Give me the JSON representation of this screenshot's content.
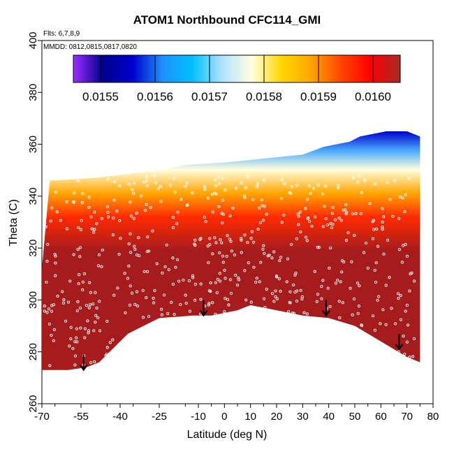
{
  "chart_data": {
    "type": "heatmap",
    "title": "ATOM1 Northbound CFC114_GMI",
    "subtitle_flights": "Flts: 6,7,8,9",
    "subtitle_dates": "MMDD: 0812,0815,0817,0820",
    "xlabel": "Latitude (deg N)",
    "ylabel": "Theta (C)",
    "xlim": [
      -70,
      80
    ],
    "ylim": [
      260,
      400
    ],
    "x_tick_labels": [
      "-70",
      "-55",
      "-40",
      "-25",
      "-10",
      "0",
      "10",
      "20",
      "30",
      "40",
      "50",
      "60",
      "70",
      "80"
    ],
    "x_tick_values": [
      -70,
      -55,
      -40,
      -25,
      -10,
      0,
      10,
      20,
      30,
      40,
      50,
      60,
      70,
      80
    ],
    "y_ticks": [
      260,
      280,
      300,
      320,
      340,
      360,
      380,
      400
    ],
    "colorbar": {
      "range": [
        0.01545,
        0.01605
      ],
      "tick_values": [
        0.0155,
        0.0156,
        0.0157,
        0.0158,
        0.0159,
        0.016
      ],
      "tick_labels": [
        "0.0155",
        "0.0156",
        "0.0157",
        "0.0158",
        "0.0159",
        "0.0160"
      ],
      "colors": [
        "#9b30ff",
        "#00008b",
        "#0000cd",
        "#1e90ff",
        "#00bfff",
        "#b0e2ff",
        "#ffffe0",
        "#ffd700",
        "#ffa500",
        "#ff4500",
        "#ff0000",
        "#a52a2a"
      ]
    },
    "field_description_colors": {
      "low": "#0000cd",
      "mid": "#ffffe0",
      "high": "#a61c1c"
    },
    "profile_upper_boundary": [
      [
        -70,
        312
      ],
      [
        -67,
        346
      ],
      [
        -50,
        347
      ],
      [
        -42,
        348
      ],
      [
        -25,
        350
      ],
      [
        -15,
        352
      ],
      [
        0,
        353
      ],
      [
        10,
        354
      ],
      [
        20,
        355
      ],
      [
        30,
        356
      ],
      [
        38,
        359
      ],
      [
        48,
        361
      ],
      [
        52,
        363
      ],
      [
        62,
        365
      ],
      [
        70,
        365
      ],
      [
        75,
        363
      ]
    ],
    "profile_lower_boundary": [
      [
        -70,
        273
      ],
      [
        -60,
        273
      ],
      [
        -53,
        274
      ],
      [
        -48,
        276
      ],
      [
        -37,
        287
      ],
      [
        -25,
        293
      ],
      [
        -12,
        294
      ],
      [
        -5,
        294
      ],
      [
        5,
        296
      ],
      [
        10,
        298
      ],
      [
        20,
        296
      ],
      [
        30,
        294
      ],
      [
        40,
        293
      ],
      [
        50,
        290
      ],
      [
        60,
        284
      ],
      [
        70,
        278
      ],
      [
        75,
        276
      ]
    ],
    "arrows": [
      {
        "lat": -54,
        "theta": 273
      },
      {
        "lat": -8,
        "theta": 294
      },
      {
        "lat": 39,
        "theta": 294
      },
      {
        "lat": 67,
        "theta": 281
      }
    ]
  }
}
